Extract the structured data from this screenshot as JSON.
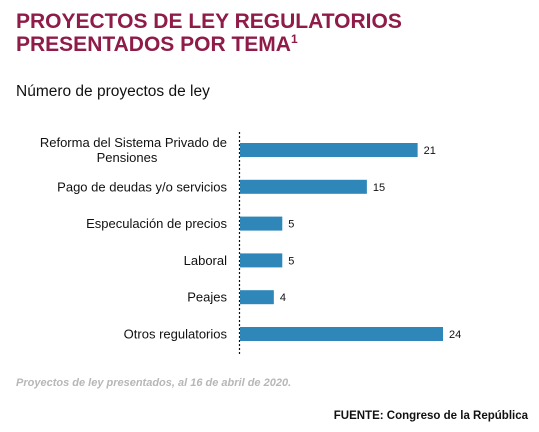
{
  "header": {
    "title_line1": "PROYECTOS DE LEY REGULATORIOS",
    "title_line2": "PRESENTADOS POR TEMA",
    "title_footnote": "1",
    "subtitle": "Número de proyectos de ley"
  },
  "chart_data": {
    "type": "bar",
    "orientation": "horizontal",
    "title": "PROYECTOS DE LEY REGULATORIOS PRESENTADOS POR TEMA",
    "ylabel": "Número de proyectos de ley",
    "categories": [
      [
        "Reforma del Sistema Privado de",
        "Pensiones"
      ],
      [
        "Pago de deudas y/o servicios"
      ],
      [
        "Especulación de precios"
      ],
      [
        "Laboral"
      ],
      [
        "Peajes"
      ],
      [
        "Otros regulatorios"
      ]
    ],
    "values": [
      21,
      15,
      5,
      5,
      4,
      24
    ],
    "xlim": [
      0,
      24
    ],
    "grid": false,
    "data_labels": true,
    "bar_color": "#2e86b9"
  },
  "footer": {
    "note": "Proyectos de ley presentados, al 16 de abril de 2020.",
    "source": "FUENTE: Congreso de la República"
  },
  "colors": {
    "title": "#8e1b48",
    "bar": "#2e86b9",
    "note": "#b7b7b7"
  }
}
